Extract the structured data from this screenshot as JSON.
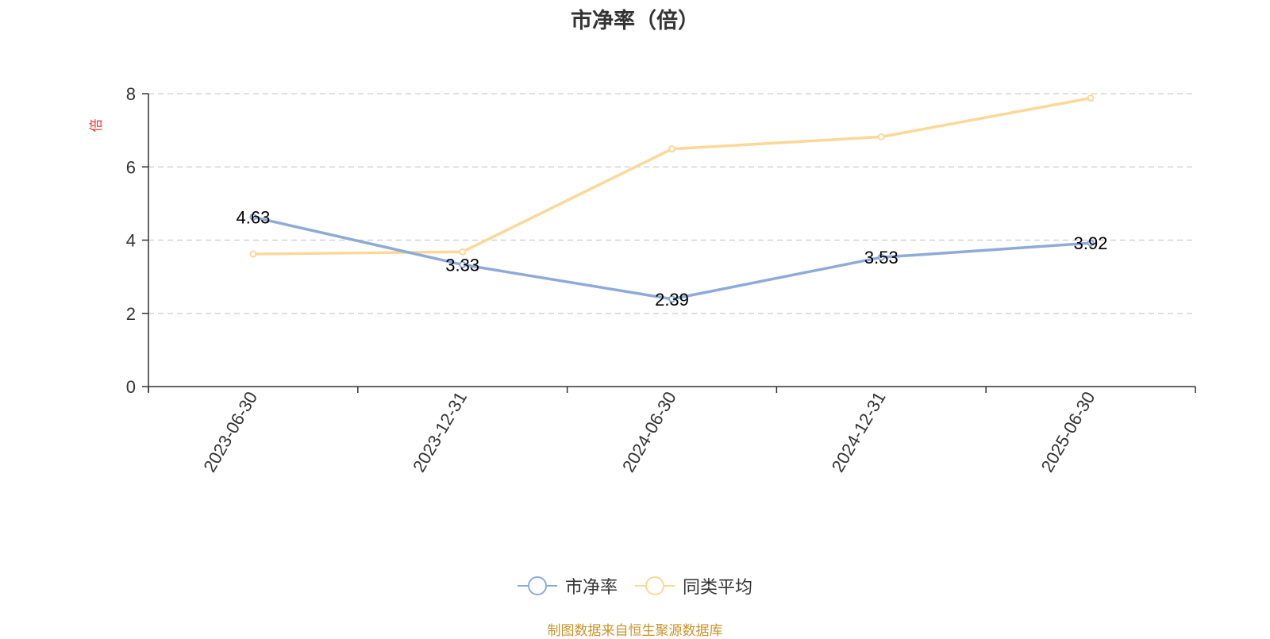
{
  "chart_data": {
    "type": "line",
    "title": "市净率（倍）",
    "ylabel": "倍",
    "xlabel": "",
    "categories": [
      "2023-06-30",
      "2023-12-31",
      "2024-06-30",
      "2024-12-31",
      "2025-06-30"
    ],
    "ylim": [
      0,
      8
    ],
    "yticks": [
      0,
      2,
      4,
      6,
      8
    ],
    "grid": true,
    "legend_position": "bottom",
    "series": [
      {
        "name": "市净率",
        "values": [
          4.63,
          3.33,
          2.39,
          3.53,
          3.92
        ],
        "labels": [
          "4.63",
          "3.33",
          "2.39",
          "3.53",
          "3.92"
        ],
        "color": "#8eaad8"
      },
      {
        "name": "同类平均",
        "values": [
          3.62,
          3.68,
          6.49,
          6.82,
          7.88
        ],
        "color": "#fbd898"
      }
    ]
  },
  "footer": {
    "source": "制图数据来自恒生聚源数据库"
  },
  "colors": {
    "axis": "#333333",
    "grid": "#cccccc",
    "ylabel": "#e8332b",
    "source": "#c8952c"
  }
}
